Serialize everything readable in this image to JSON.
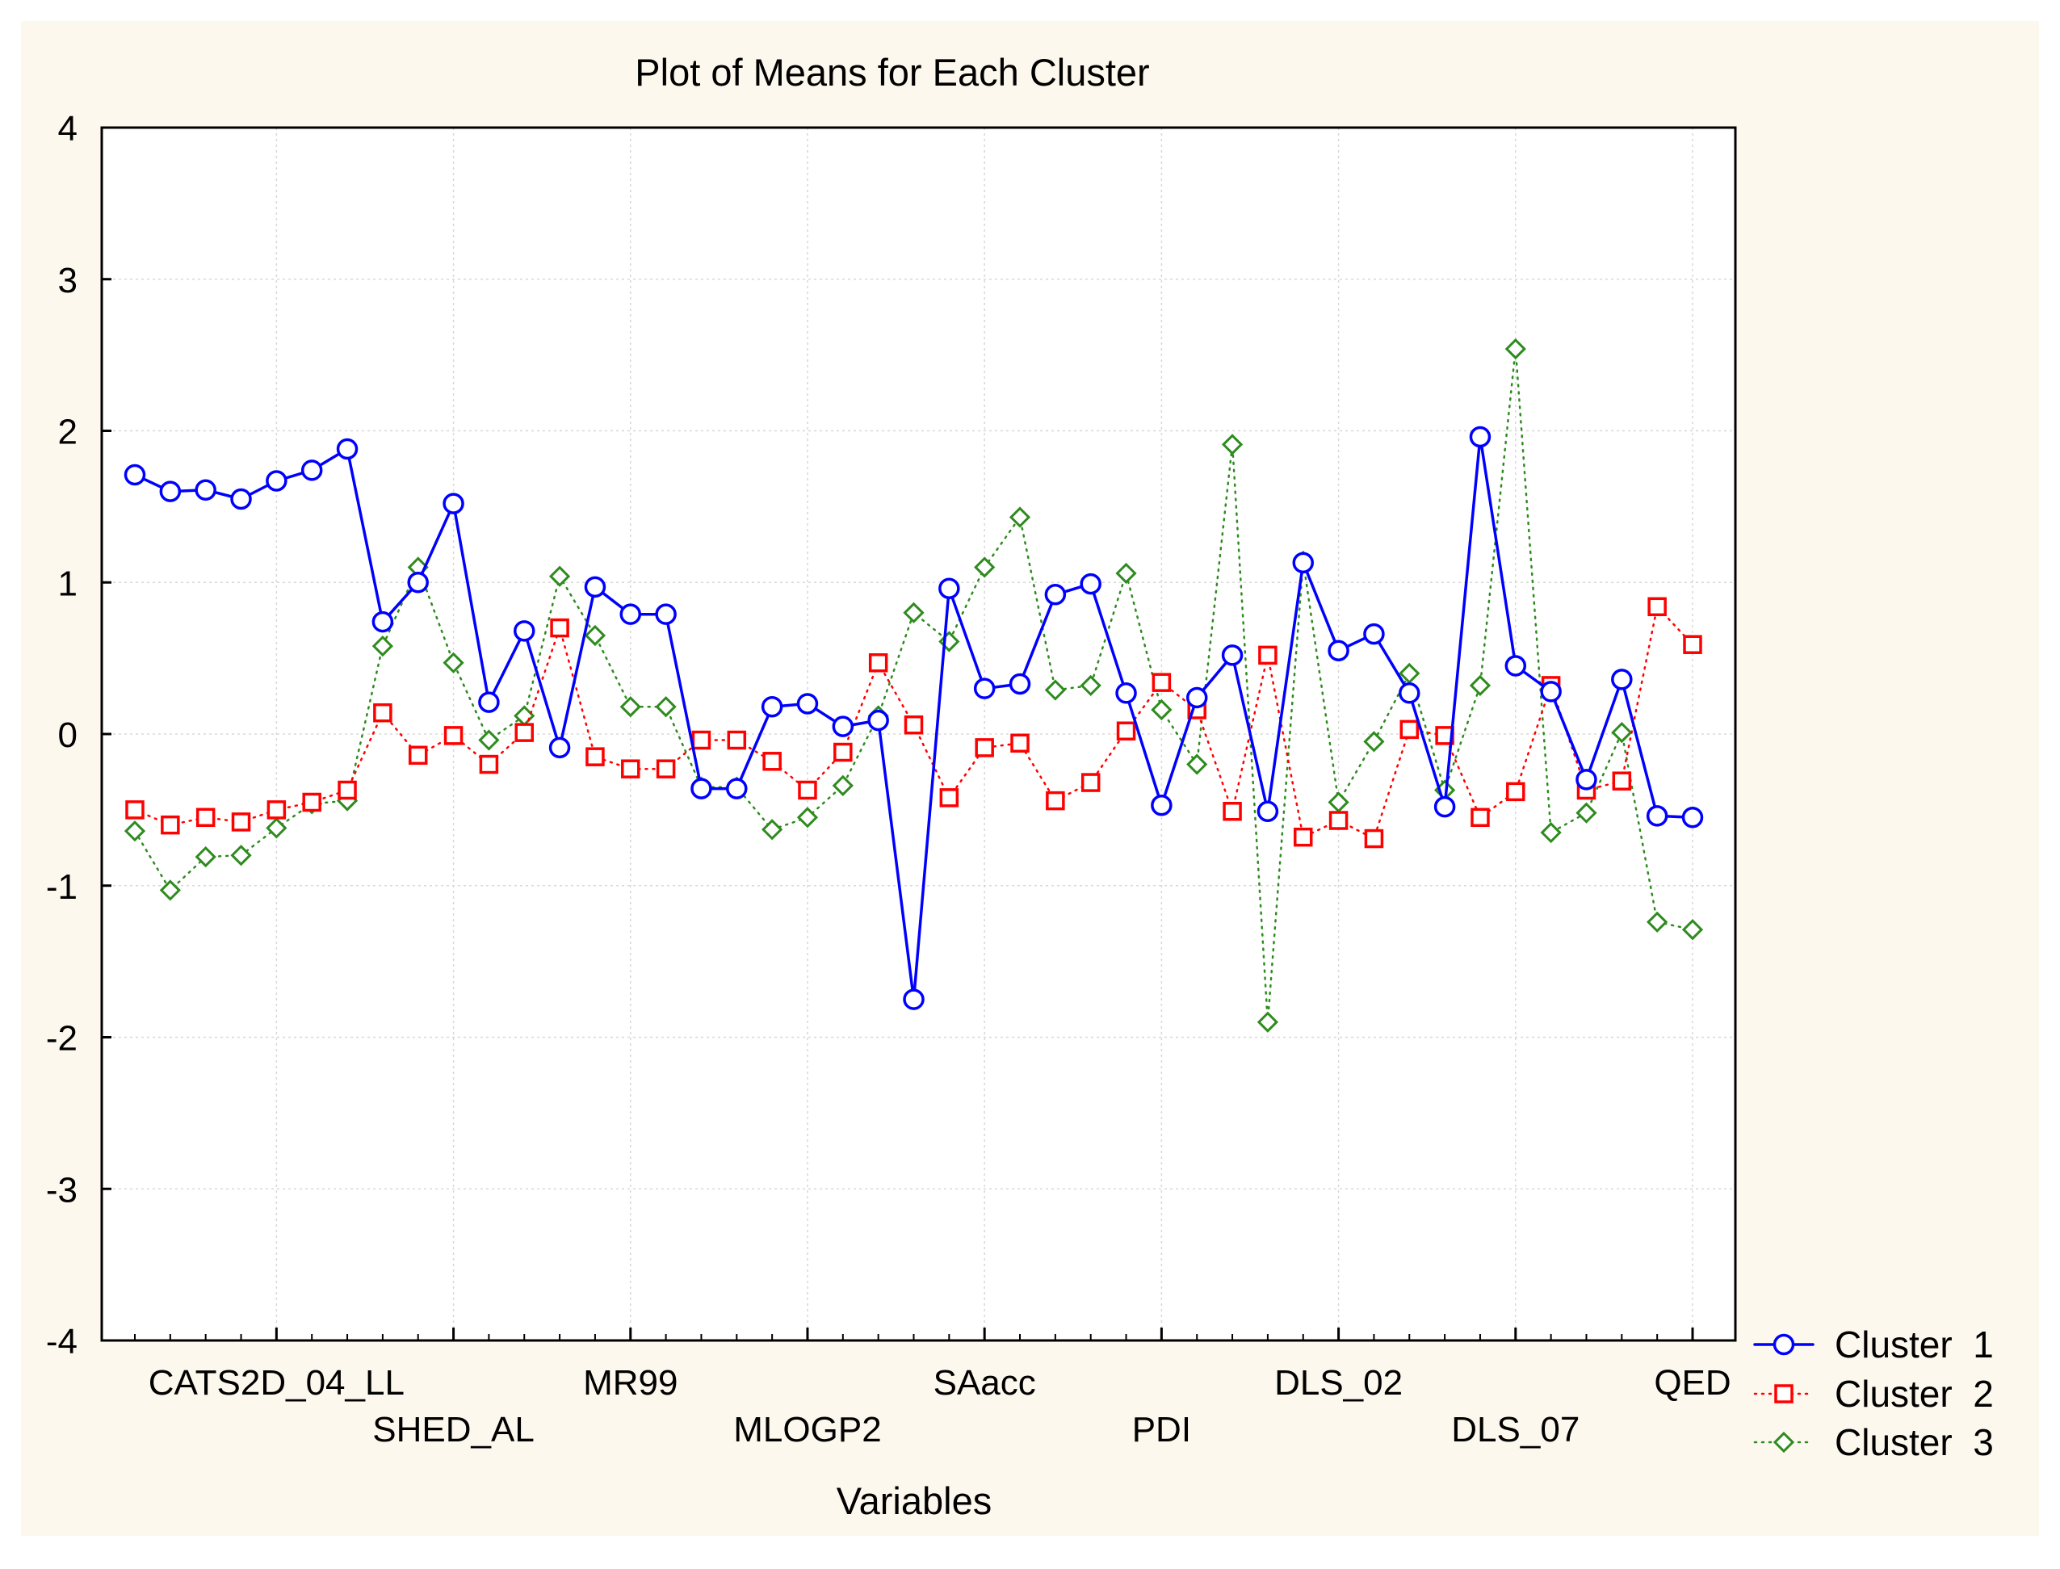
{
  "chart_data": {
    "type": "line",
    "title": "Plot of Means for Each Cluster",
    "xlabel": "Variables",
    "ylabel": "",
    "ylim": [
      -4,
      4
    ],
    "yticks": [
      4,
      3,
      2,
      1,
      0,
      -1,
      -2,
      -3,
      -4
    ],
    "grid": true,
    "legend_position": "right-bottom",
    "variable_count": 45,
    "tick_labels": [
      {
        "index": 4,
        "label": "CATS2D_04_LL",
        "row": 1
      },
      {
        "index": 9,
        "label": "SHED_AL",
        "row": 2
      },
      {
        "index": 14,
        "label": "MR99",
        "row": 1
      },
      {
        "index": 19,
        "label": "MLOGP2",
        "row": 2
      },
      {
        "index": 24,
        "label": "SAacc",
        "row": 1
      },
      {
        "index": 29,
        "label": "PDI",
        "row": 2
      },
      {
        "index": 34,
        "label": "DLS_02",
        "row": 1
      },
      {
        "index": 39,
        "label": "DLS_07",
        "row": 2
      },
      {
        "index": 44,
        "label": "QED",
        "row": 1
      }
    ],
    "series": [
      {
        "name": "Cluster  1",
        "color": "#0000ff",
        "marker": "circle",
        "line_style": "solid",
        "values": [
          1.71,
          1.6,
          1.61,
          1.55,
          1.67,
          1.74,
          1.88,
          0.74,
          1.0,
          1.52,
          0.21,
          0.68,
          -0.09,
          0.97,
          0.79,
          0.79,
          -0.36,
          -0.36,
          0.18,
          0.2,
          0.05,
          0.09,
          -1.75,
          0.96,
          0.3,
          0.33,
          0.92,
          0.99,
          0.27,
          -0.47,
          0.24,
          0.52,
          -0.51,
          1.13,
          0.55,
          0.66,
          0.27,
          -0.48,
          1.96,
          0.45,
          0.28,
          -0.3,
          0.36,
          -0.54,
          -0.55
        ]
      },
      {
        "name": "Cluster  2",
        "color": "#ff0000",
        "marker": "square",
        "line_style": "dotted",
        "values": [
          -0.5,
          -0.6,
          -0.55,
          -0.58,
          -0.5,
          -0.45,
          -0.37,
          0.14,
          -0.14,
          -0.01,
          -0.2,
          0.01,
          0.7,
          -0.15,
          -0.23,
          -0.23,
          -0.04,
          -0.04,
          -0.18,
          -0.37,
          -0.12,
          0.47,
          0.06,
          -0.42,
          -0.09,
          -0.06,
          -0.44,
          -0.32,
          0.02,
          0.34,
          0.16,
          -0.51,
          0.52,
          -0.68,
          -0.57,
          -0.69,
          0.03,
          -0.01,
          -0.55,
          -0.38,
          0.32,
          -0.37,
          -0.31,
          0.84,
          0.59
        ]
      },
      {
        "name": "Cluster  3",
        "color": "#2e8b1e",
        "marker": "diamond",
        "line_style": "dotted",
        "values": [
          -0.64,
          -1.03,
          -0.81,
          -0.8,
          -0.62,
          -0.46,
          -0.44,
          0.58,
          1.1,
          0.47,
          -0.04,
          0.12,
          1.04,
          0.65,
          0.18,
          0.18,
          -0.35,
          -0.35,
          -0.63,
          -0.55,
          -0.34,
          0.12,
          0.8,
          0.61,
          1.1,
          1.43,
          0.29,
          0.32,
          1.06,
          0.16,
          -0.2,
          1.91,
          -1.9,
          1.14,
          -0.45,
          -0.05,
          0.4,
          -0.37,
          0.32,
          2.54,
          -0.65,
          -0.52,
          0.01,
          -1.24,
          -1.29
        ]
      }
    ]
  }
}
